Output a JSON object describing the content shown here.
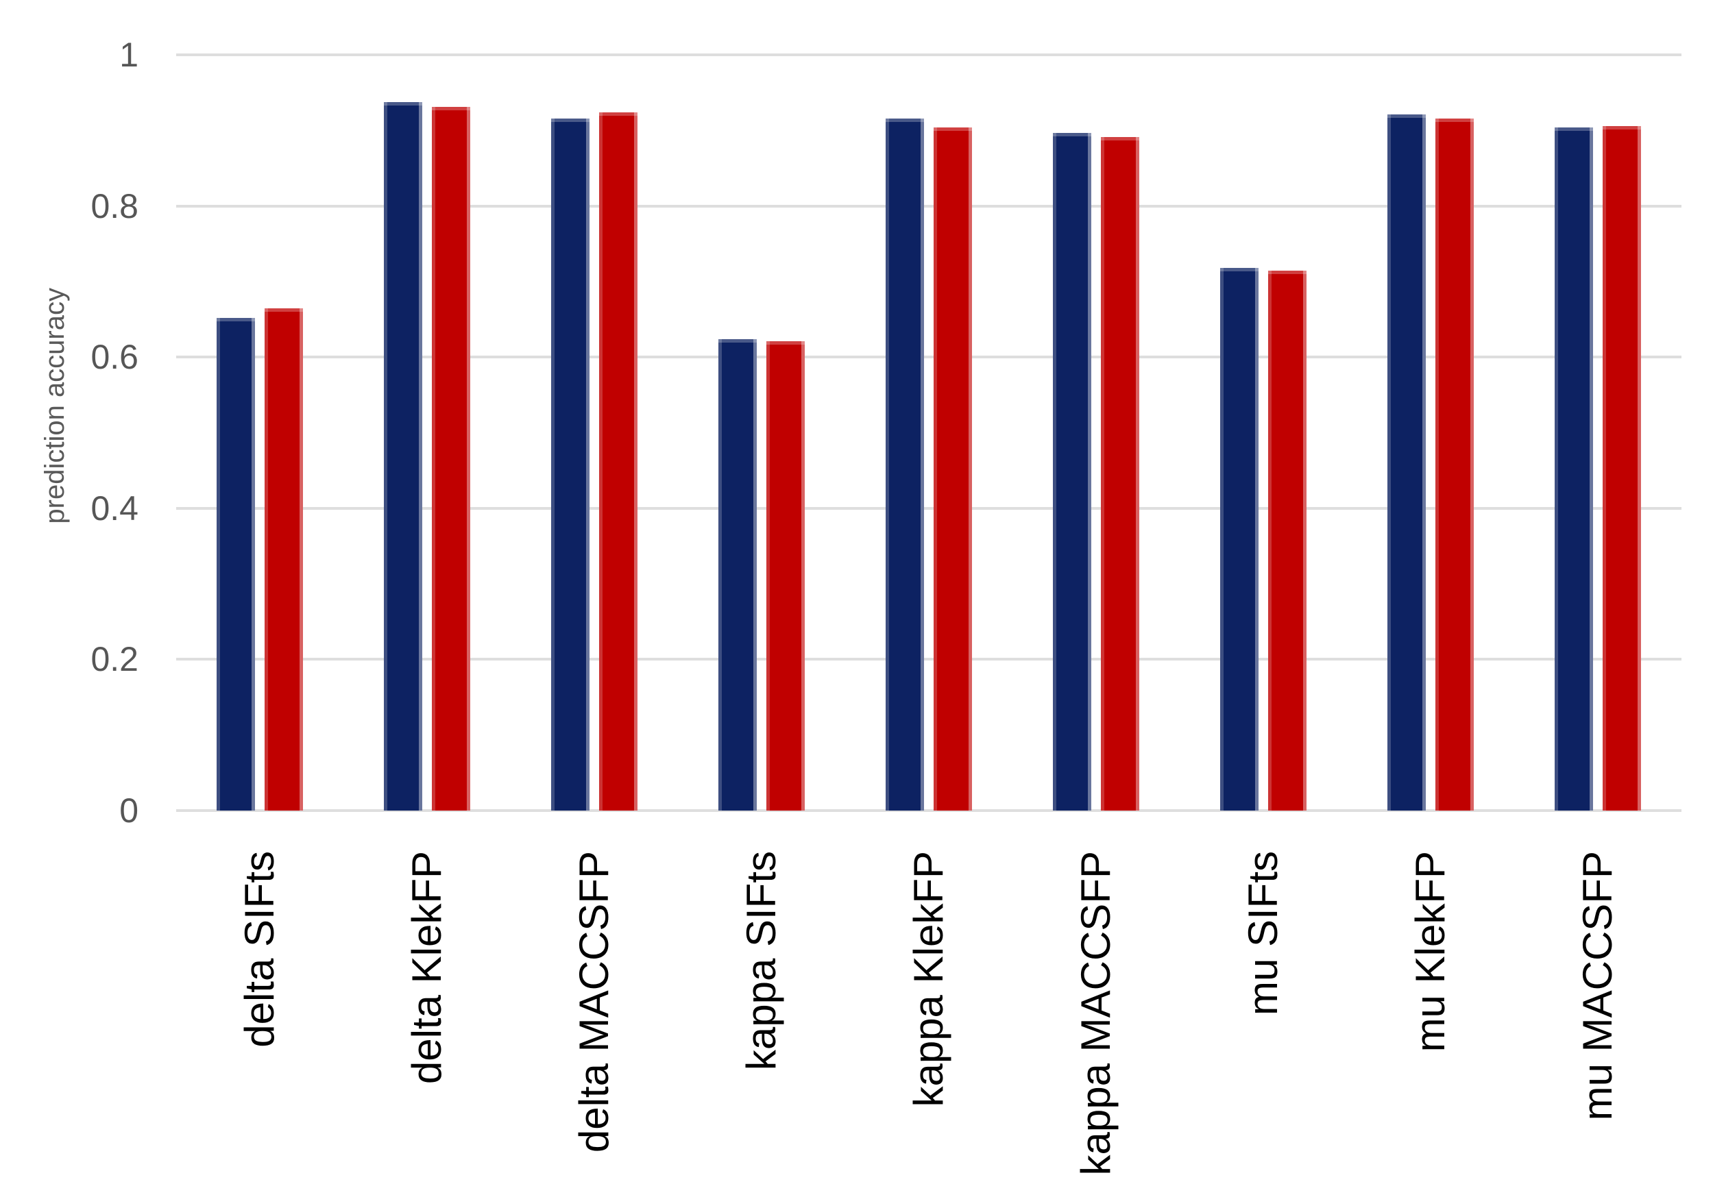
{
  "figure": {
    "background": "#ffffff"
  },
  "style_colors": {
    "gridline": "#dedede",
    "tick_text": "#565656",
    "axis_title_text": "#595959",
    "category_text": "#000000"
  },
  "chart_data": {
    "type": "bar",
    "title": "",
    "xlabel": "",
    "ylabel": "prediction accuracy",
    "ylim": [
      0,
      1
    ],
    "grid": true,
    "legend": false,
    "yticks": [
      {
        "value": 0,
        "label": "0"
      },
      {
        "value": 0.2,
        "label": "0.2"
      },
      {
        "value": 0.4,
        "label": "0.4"
      },
      {
        "value": 0.6,
        "label": "0.6"
      },
      {
        "value": 0.8,
        "label": "0.8"
      },
      {
        "value": 1,
        "label": "1"
      }
    ],
    "categories": [
      "delta SIFts",
      "delta KlekFP",
      "delta MACCSFP",
      "kappa SIFts",
      "kappa KlekFP",
      "kappa MACCSFP",
      "mu SIFts",
      "mu KlekFP",
      "mu MACCSFP"
    ],
    "series": [
      {
        "name": "navy",
        "color": "#0d2262",
        "values": [
          0.652,
          0.937,
          0.916,
          0.624,
          0.916,
          0.897,
          0.718,
          0.921,
          0.904
        ]
      },
      {
        "name": "red",
        "color": "#c00000",
        "values": [
          0.665,
          0.931,
          0.924,
          0.621,
          0.904,
          0.891,
          0.714,
          0.916,
          0.906
        ]
      }
    ]
  }
}
